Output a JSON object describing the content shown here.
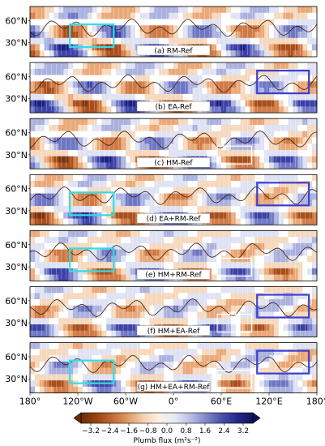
{
  "figure": {
    "lat_labels": [
      "60°N",
      "30°N"
    ],
    "lon_labels": [
      "180°",
      "120°W",
      "60°W",
      "0°",
      "60°E",
      "120°E",
      "180°"
    ],
    "panels": [
      {
        "label": "(a) RM-Ref",
        "boxes": [
          "cyan-west"
        ]
      },
      {
        "label": "(b) EA-Ref",
        "boxes": [
          "blue-east"
        ]
      },
      {
        "label": "(c) HM-Ref",
        "boxes": [
          "white-asia"
        ]
      },
      {
        "label": "(d) EA+RM-Ref",
        "boxes": [
          "cyan-west",
          "blue-east"
        ]
      },
      {
        "label": "(e) HM+RM-Ref",
        "boxes": [
          "cyan-west",
          "white-asia"
        ]
      },
      {
        "label": "(f) HM+EA-Ref",
        "boxes": [
          "blue-east",
          "white-asia"
        ]
      },
      {
        "label": "(g) HM+EA+RM-Ref",
        "boxes": [
          "cyan-west",
          "blue-east",
          "white-asia"
        ]
      }
    ],
    "colorbar": {
      "title": "Plumb flux (m²s⁻²)",
      "ticks": [
        "−3.2",
        "−2.4",
        "−1.6",
        "−0.8",
        "0.0",
        "0.8",
        "1.6",
        "2.4",
        "3.2"
      ],
      "colors": [
        "#6b2a08",
        "#9a4413",
        "#c06a33",
        "#df9a66",
        "#f3d2b0",
        "#fbf0e4",
        "#e7e9f5",
        "#b7bde3",
        "#8088c9",
        "#4a4fad",
        "#262a8a",
        "#120f5c"
      ]
    },
    "box_colors": {
      "cyan-west": "#33dde6",
      "blue-east": "#3b3fd0",
      "white-asia": "#ffffff"
    }
  }
}
